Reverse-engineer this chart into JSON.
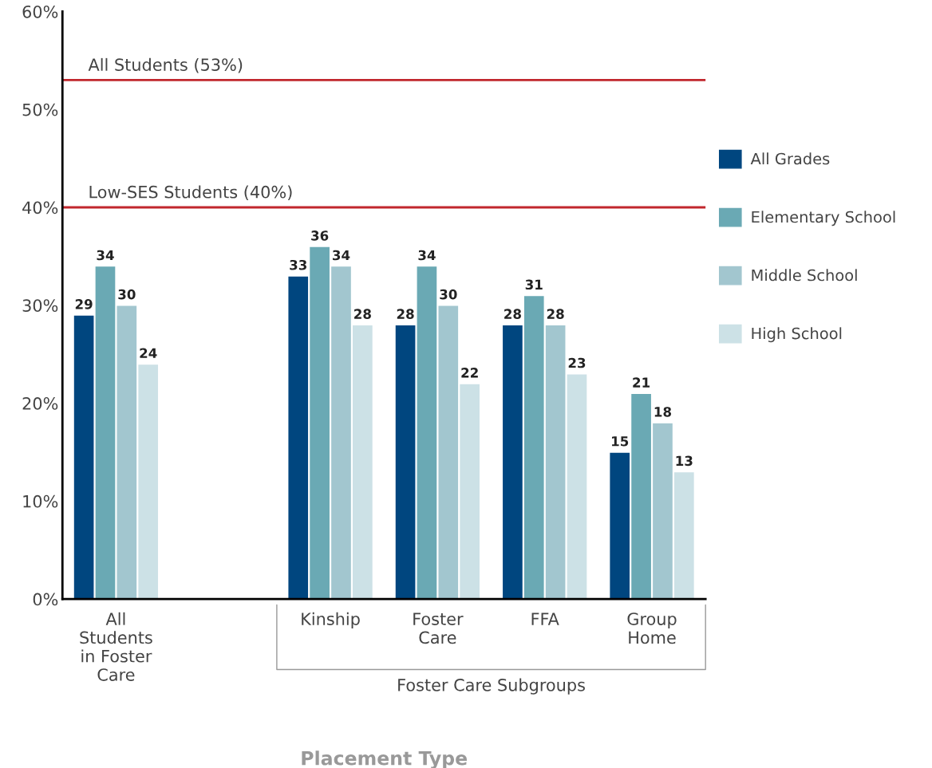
{
  "chart_data": {
    "type": "bar",
    "xlabel": "Placement Type",
    "categories": [
      "All\nStudents\nin Foster\nCare",
      null,
      "Kinship",
      "Foster\nCare",
      "FFA",
      "Group\nHome"
    ],
    "series": [
      {
        "name": "All Grades",
        "color": "#00467f",
        "values": [
          29,
          null,
          33,
          28,
          28,
          15
        ]
      },
      {
        "name": "Elementary School",
        "color": "#6aa9b4",
        "values": [
          34,
          null,
          36,
          34,
          31,
          21
        ]
      },
      {
        "name": "Middle School",
        "color": "#a2c6cf",
        "values": [
          30,
          null,
          34,
          30,
          28,
          18
        ]
      },
      {
        "name": "High School",
        "color": "#cce1e6",
        "values": [
          24,
          null,
          28,
          22,
          23,
          13
        ]
      }
    ],
    "ylim": [
      0,
      60
    ],
    "yticks": [
      {
        "value": 0,
        "label": "0%"
      },
      {
        "value": 10,
        "label": "10%"
      },
      {
        "value": 20,
        "label": "20%"
      },
      {
        "value": 30,
        "label": "30%"
      },
      {
        "value": 40,
        "label": "40%"
      },
      {
        "value": 50,
        "label": "50%"
      },
      {
        "value": 60,
        "label": "60%"
      }
    ],
    "ref_lines": [
      {
        "axis": "y",
        "value": 53,
        "label": "All Students (53%)",
        "color": "#c1272d"
      },
      {
        "axis": "y",
        "value": 40,
        "label": "Low-SES Students (40%)",
        "color": "#c1272d"
      }
    ],
    "annotations": [
      "Foster Care Subgroups"
    ],
    "data_labels": true,
    "grid": false,
    "legend": "right"
  }
}
